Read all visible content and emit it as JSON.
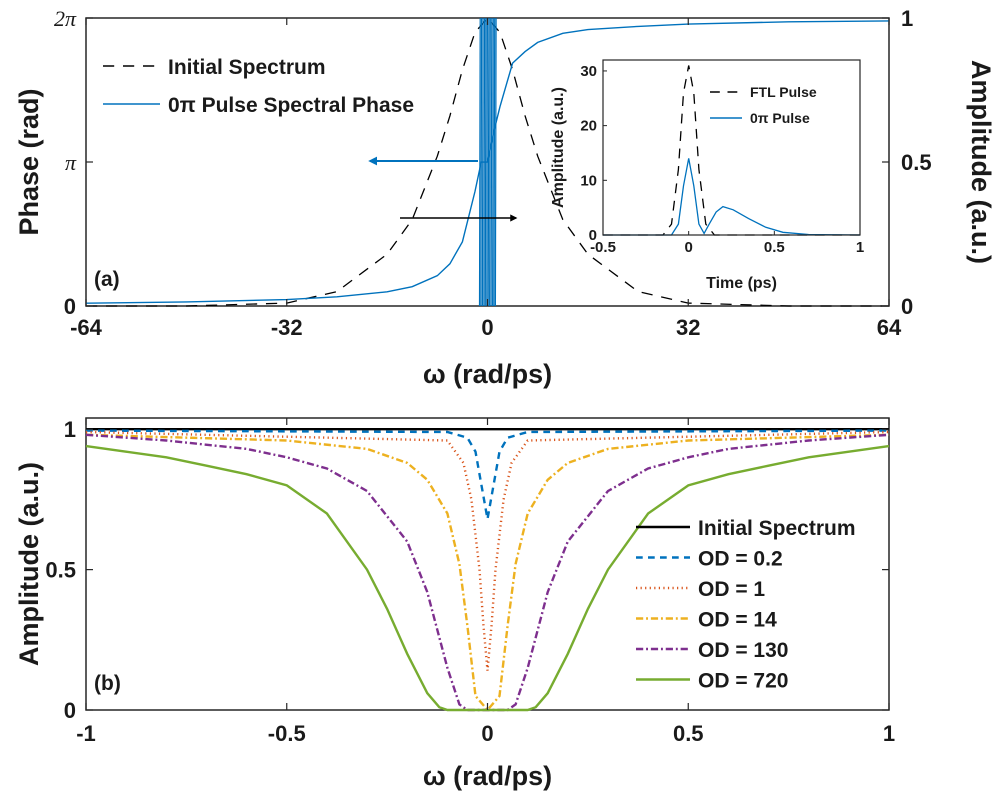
{
  "chart_data": [
    {
      "type": "line",
      "panel_label": "(a)",
      "xlabel": "ω (rad/ps)",
      "ylabel_left": "Phase (rad)",
      "ylabel_right": "Amplitude (a.u.)",
      "xlim": [
        -64,
        64
      ],
      "x_ticks": [
        "-64",
        "-32",
        "0",
        "32",
        "64"
      ],
      "y_left_ticks": [
        "0",
        "π",
        "2π"
      ],
      "y_left_range": [
        0,
        6.2832
      ],
      "y_right_ticks": [
        "0",
        "0.5",
        "1"
      ],
      "y_right_range": [
        0,
        1
      ],
      "series": [
        {
          "name": "Initial Spectrum",
          "axis": "right",
          "style": "dashed",
          "color": "#000000",
          "x": [
            -64,
            -48,
            -32,
            -24,
            -16,
            -12,
            -8,
            -6,
            -4,
            -2,
            0,
            2,
            4,
            6,
            8,
            12,
            16,
            24,
            32,
            48,
            64
          ],
          "y": [
            0.0,
            0.0,
            0.01,
            0.05,
            0.18,
            0.3,
            0.52,
            0.66,
            0.82,
            0.95,
            1.0,
            0.95,
            0.82,
            0.66,
            0.52,
            0.3,
            0.18,
            0.05,
            0.01,
            0.0,
            0.0
          ]
        },
        {
          "name": "0π Pulse Spectral Phase",
          "axis": "left",
          "style": "solid",
          "color": "#0072BD",
          "x": [
            -64,
            -48,
            -32,
            -24,
            -16,
            -12,
            -8,
            -6,
            -4,
            -2,
            -1,
            0,
            1,
            2,
            4,
            6,
            8,
            12,
            16,
            24,
            32,
            48,
            64
          ],
          "y": [
            0.06,
            0.09,
            0.14,
            0.2,
            0.31,
            0.42,
            0.66,
            0.92,
            1.4,
            2.5,
            3.14,
            3.14,
            3.8,
            4.35,
            5.3,
            5.55,
            5.75,
            5.95,
            6.03,
            6.1,
            6.15,
            6.2,
            6.22
          ]
        }
      ],
      "annotations": [
        "arrow pointing left to Phase axis",
        "arrow pointing right to Amplitude axis"
      ],
      "inset": {
        "xlabel": "Time (ps)",
        "ylabel": "Amplitude (a.u.)",
        "xlim": [
          -0.5,
          1
        ],
        "ylim": [
          0,
          32
        ],
        "x_ticks": [
          "-0.5",
          "0",
          "0.5",
          "1"
        ],
        "y_ticks": [
          "0",
          "10",
          "20",
          "30"
        ],
        "series": [
          {
            "name": "FTL Pulse",
            "style": "dashed",
            "color": "#000000",
            "x": [
              -0.5,
              -0.15,
              -0.1,
              -0.06,
              -0.03,
              0.0,
              0.03,
              0.06,
              0.1,
              0.15,
              1.0
            ],
            "y": [
              0,
              0,
              2,
              12,
              26,
              31,
              26,
              12,
              2,
              0,
              0
            ]
          },
          {
            "name": "0π Pulse",
            "style": "solid",
            "color": "#0072BD",
            "x": [
              -0.5,
              -0.1,
              -0.06,
              -0.03,
              0.0,
              0.03,
              0.06,
              0.09,
              0.12,
              0.16,
              0.2,
              0.26,
              0.35,
              0.45,
              0.55,
              0.7,
              1.0
            ],
            "y": [
              0,
              0,
              2,
              9,
              14,
              9,
              2,
              0.3,
              2,
              4.2,
              5.2,
              4.6,
              3.0,
              1.4,
              0.5,
              0.1,
              0
            ]
          }
        ]
      }
    },
    {
      "type": "line",
      "panel_label": "(b)",
      "xlabel": "ω (rad/ps)",
      "ylabel": "Amplitude (a.u.)",
      "xlim": [
        -1,
        1
      ],
      "ylim": [
        0,
        1
      ],
      "x_ticks": [
        "-1",
        "-0.5",
        "0",
        "0.5",
        "1"
      ],
      "y_ticks": [
        "0",
        "0.5",
        "1"
      ],
      "series": [
        {
          "name": "Initial Spectrum",
          "style": "solid",
          "color": "#000000",
          "x": [
            -1,
            1
          ],
          "y": [
            1.0,
            1.0
          ]
        },
        {
          "name": "OD = 0.2",
          "style": "dashed",
          "color": "#0072BD",
          "x": [
            -1,
            -0.1,
            -0.05,
            -0.03,
            -0.015,
            0,
            0.015,
            0.03,
            0.05,
            0.1,
            1
          ],
          "y": [
            0.995,
            0.99,
            0.97,
            0.92,
            0.8,
            0.68,
            0.8,
            0.92,
            0.97,
            0.99,
            0.995
          ]
        },
        {
          "name": "OD = 1",
          "style": "dotted",
          "color": "#D95319",
          "x": [
            -1,
            -0.1,
            -0.06,
            -0.04,
            -0.02,
            -0.01,
            0,
            0.01,
            0.02,
            0.04,
            0.06,
            0.1,
            1
          ],
          "y": [
            0.99,
            0.96,
            0.88,
            0.75,
            0.5,
            0.3,
            0.14,
            0.3,
            0.5,
            0.75,
            0.88,
            0.96,
            0.99
          ]
        },
        {
          "name": "OD = 14",
          "style": "dashdot",
          "color": "#EDB120",
          "x": [
            -1,
            -0.5,
            -0.3,
            -0.2,
            -0.15,
            -0.1,
            -0.07,
            -0.05,
            -0.03,
            0,
            0.03,
            0.05,
            0.07,
            0.1,
            0.15,
            0.2,
            0.3,
            0.5,
            1
          ],
          "y": [
            0.98,
            0.96,
            0.93,
            0.88,
            0.82,
            0.7,
            0.52,
            0.3,
            0.05,
            0.0,
            0.05,
            0.3,
            0.52,
            0.7,
            0.82,
            0.88,
            0.93,
            0.96,
            0.98
          ]
        },
        {
          "name": "OD = 130",
          "style": "dashdot",
          "color": "#7E2F8E",
          "x": [
            -1,
            -0.8,
            -0.6,
            -0.5,
            -0.4,
            -0.3,
            -0.2,
            -0.15,
            -0.1,
            -0.07,
            -0.05,
            0,
            0.05,
            0.07,
            0.1,
            0.15,
            0.2,
            0.3,
            0.4,
            0.5,
            0.6,
            0.8,
            1
          ],
          "y": [
            0.98,
            0.96,
            0.93,
            0.9,
            0.86,
            0.78,
            0.6,
            0.42,
            0.15,
            0.02,
            0.0,
            0.0,
            0.0,
            0.02,
            0.15,
            0.42,
            0.6,
            0.78,
            0.86,
            0.9,
            0.93,
            0.96,
            0.98
          ]
        },
        {
          "name": "OD = 720",
          "style": "solid",
          "color": "#77AC30",
          "x": [
            -1,
            -0.9,
            -0.8,
            -0.7,
            -0.6,
            -0.5,
            -0.4,
            -0.3,
            -0.25,
            -0.2,
            -0.15,
            -0.12,
            -0.1,
            0,
            0.1,
            0.12,
            0.15,
            0.2,
            0.25,
            0.3,
            0.4,
            0.5,
            0.6,
            0.7,
            0.8,
            0.9,
            1
          ],
          "y": [
            0.94,
            0.92,
            0.9,
            0.87,
            0.84,
            0.8,
            0.7,
            0.5,
            0.36,
            0.2,
            0.06,
            0.01,
            0.0,
            0.0,
            0.0,
            0.01,
            0.06,
            0.2,
            0.36,
            0.5,
            0.7,
            0.8,
            0.84,
            0.87,
            0.9,
            0.92,
            0.94
          ]
        }
      ]
    }
  ]
}
